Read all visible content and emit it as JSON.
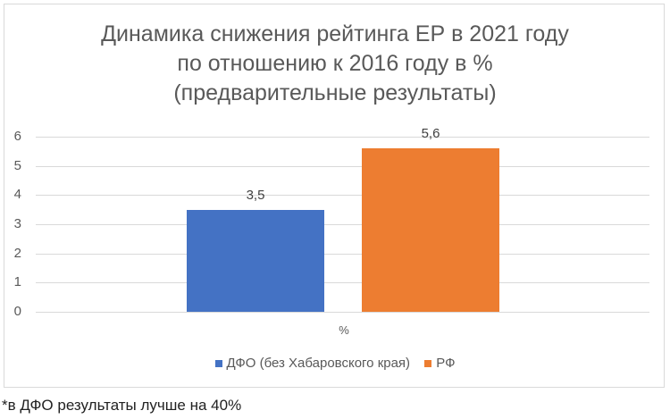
{
  "chart_data": {
    "type": "bar",
    "title": "Динамика снижения рейтинга ЕР в 2021 году по отношению к 2016 году в % (предварительные результаты)",
    "title_lines": [
      "Динамика снижения рейтинга ЕР в 2021 году",
      "по отношению к 2016 году в %",
      "(предварительные результаты)"
    ],
    "categories": [
      "%"
    ],
    "series": [
      {
        "name": "ДФО (без Хабаровского края)",
        "values": [
          3.5
        ],
        "label": "3,5",
        "color": "#4472c4"
      },
      {
        "name": "РФ",
        "values": [
          5.6
        ],
        "label": "5,6",
        "color": "#ed7d31"
      }
    ],
    "xlabel": "%",
    "ylabel": "",
    "ylim": [
      0,
      6
    ],
    "yticks": [
      "0",
      "1",
      "2",
      "3",
      "4",
      "5",
      "6"
    ],
    "grid": true,
    "legend_position": "bottom"
  },
  "footnote": "*в ДФО результаты лучше на 40%"
}
